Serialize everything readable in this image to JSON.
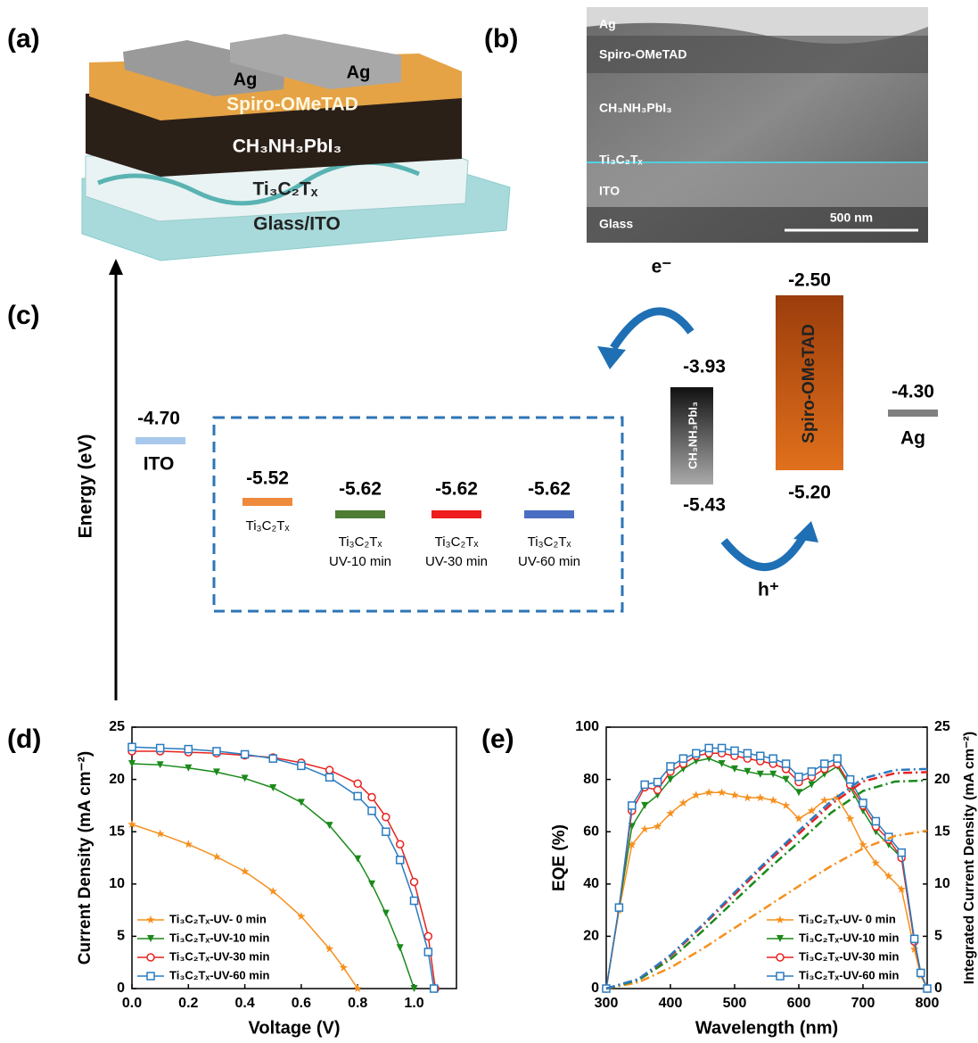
{
  "panels": {
    "a": {
      "label": "(a)",
      "layers": {
        "ag_left": "Ag",
        "ag_right": "Ag",
        "spiro": "Spiro-OMeTAD",
        "perovskite": "CH₃NH₃PbI₃",
        "mxene": "Ti₃C₂Tₓ",
        "substrate": "Glass/ITO"
      }
    },
    "b": {
      "label": "(b)",
      "layers": [
        "Ag",
        "Spiro-OMeTAD",
        "CH₃NH₃PbI₃",
        "Ti₃C₂Tₓ",
        "ITO",
        "Glass"
      ],
      "scale_bar": "500 nm"
    },
    "c": {
      "label": "(c)",
      "axis_label": "Energy (eV)",
      "ito": {
        "level": "-4.70",
        "name": "ITO"
      },
      "mxene_levels": [
        {
          "level": "-5.52",
          "name": "Ti₃C₂Tₓ",
          "color": "#ee8a3c"
        },
        {
          "level": "-5.62",
          "name": "Ti₃C₂Tₓ",
          "treatment": "UV-10 min",
          "color": "#4e7c32"
        },
        {
          "level": "-5.62",
          "name": "Ti₃C₂Tₓ",
          "treatment": "UV-30 min",
          "color": "#ee1c1c"
        },
        {
          "level": "-5.62",
          "name": "Ti₃C₂Tₓ",
          "treatment": "UV-60 min",
          "color": "#4a6ec2"
        }
      ],
      "perovskite": {
        "lumo": "-3.93",
        "homo": "-5.43",
        "name": "CH₃NH₃PbI₃"
      },
      "spiro": {
        "lumo": "-2.50",
        "homo": "-5.20",
        "name": "Spiro-OMeTAD"
      },
      "ag": {
        "level": "-4.30",
        "name": "Ag"
      },
      "electron": "e⁻",
      "hole": "h⁺"
    }
  },
  "chart_data": [
    {
      "panel": "(d)",
      "type": "line",
      "xlabel": "Voltage (V)",
      "ylabel": "Current Density (mA cm⁻²)",
      "xlim": [
        0,
        1.15
      ],
      "ylim": [
        0,
        25
      ],
      "xticks": [
        {
          "value": 0,
          "label": "0.0"
        },
        0.2,
        0.4,
        0.6,
        0.8,
        {
          "value": 1,
          "label": "1.0"
        }
      ],
      "yticks": [
        0,
        5,
        10,
        15,
        20,
        25
      ],
      "legend": "lower left",
      "series": [
        {
          "name": "Ti₃C₂Tₓ-UV- 0 min",
          "color": "#f5901e",
          "marker": "star",
          "x": [
            0,
            0.1,
            0.2,
            0.3,
            0.4,
            0.5,
            0.6,
            0.7,
            0.75,
            0.8
          ],
          "values": [
            15.7,
            14.8,
            13.8,
            12.6,
            11.2,
            9.3,
            6.9,
            3.8,
            2.0,
            0
          ]
        },
        {
          "name": "Ti₃C₂Tₓ-UV-10 min",
          "color": "#1a8a1a",
          "marker": "triangle",
          "x": [
            0,
            0.1,
            0.2,
            0.3,
            0.4,
            0.5,
            0.6,
            0.7,
            0.8,
            0.85,
            0.9,
            0.95,
            1.0
          ],
          "values": [
            21.5,
            21.4,
            21.1,
            20.7,
            20.1,
            19.2,
            17.8,
            15.6,
            12.4,
            10.0,
            7.2,
            3.9,
            0
          ]
        },
        {
          "name": "Ti₃C₂Tₓ-UV-30 min",
          "color": "#e8221f",
          "marker": "circle",
          "x": [
            0,
            0.1,
            0.2,
            0.3,
            0.4,
            0.5,
            0.6,
            0.7,
            0.8,
            0.85,
            0.9,
            0.95,
            1.0,
            1.05,
            1.075
          ],
          "values": [
            22.7,
            22.7,
            22.6,
            22.5,
            22.3,
            22.1,
            21.6,
            20.9,
            19.6,
            18.3,
            16.4,
            13.8,
            10.2,
            5.0,
            0
          ]
        },
        {
          "name": "Ti₃C₂Tₓ-UV-60 min",
          "color": "#2a7bc0",
          "marker": "square",
          "x": [
            0,
            0.1,
            0.2,
            0.3,
            0.4,
            0.5,
            0.6,
            0.7,
            0.8,
            0.85,
            0.9,
            0.95,
            1.0,
            1.05,
            1.07
          ],
          "values": [
            23.1,
            23.0,
            22.9,
            22.7,
            22.4,
            22.0,
            21.3,
            20.2,
            18.4,
            17.0,
            15.0,
            12.3,
            8.4,
            3.5,
            0
          ]
        }
      ]
    },
    {
      "panel": "(e)",
      "type": "line",
      "xlabel": "Wavelength (nm)",
      "ylabel": "EQE (%)",
      "y2label": "Integrated Current Density (mA cm⁻²)",
      "xlim": [
        300,
        800
      ],
      "ylim": [
        0,
        100
      ],
      "y2lim": [
        0,
        25
      ],
      "xticks": [
        300,
        400,
        500,
        600,
        700,
        800
      ],
      "yticks": [
        0,
        20,
        40,
        60,
        80,
        100
      ],
      "y2ticks": [
        0,
        5,
        10,
        15,
        20,
        25
      ],
      "legend": "lower right",
      "series": [
        {
          "name": "Ti₃C₂Tₓ-UV- 0 min",
          "color": "#f5901e",
          "marker": "star",
          "x": [
            300,
            320,
            340,
            360,
            380,
            400,
            420,
            440,
            460,
            480,
            500,
            520,
            540,
            560,
            580,
            600,
            620,
            640,
            660,
            680,
            700,
            720,
            740,
            760,
            780,
            790,
            800
          ],
          "values": [
            0,
            30,
            55,
            61,
            62,
            67,
            71,
            74,
            75,
            75,
            74,
            73,
            73,
            72,
            70,
            65,
            68,
            72,
            73,
            65,
            55,
            48,
            43,
            38,
            15,
            5,
            0
          ]
        },
        {
          "name": "Ti₃C₂Tₓ-UV-10 min",
          "color": "#1a8a1a",
          "marker": "triangle",
          "x": [
            300,
            320,
            340,
            360,
            380,
            400,
            420,
            440,
            460,
            480,
            500,
            520,
            540,
            560,
            580,
            600,
            620,
            640,
            660,
            680,
            700,
            720,
            740,
            760,
            780,
            790,
            800
          ],
          "values": [
            0,
            31,
            62,
            70,
            74,
            80,
            84,
            87,
            88,
            86,
            84,
            83,
            82,
            82,
            80,
            75,
            78,
            82,
            85,
            77,
            68,
            60,
            55,
            50,
            18,
            6,
            0
          ]
        },
        {
          "name": "Ti₃C₂Tₓ-UV-30 min",
          "color": "#e8221f",
          "marker": "circle",
          "x": [
            300,
            320,
            340,
            360,
            380,
            400,
            420,
            440,
            460,
            480,
            500,
            520,
            540,
            560,
            580,
            600,
            620,
            640,
            660,
            680,
            700,
            720,
            740,
            760,
            780,
            790,
            800
          ],
          "values": [
            0,
            31,
            68,
            77,
            76,
            83,
            86,
            89,
            90,
            90,
            89,
            88,
            87,
            86,
            84,
            79,
            81,
            84,
            86,
            78,
            70,
            62,
            57,
            50,
            18,
            6,
            0
          ]
        },
        {
          "name": "Ti₃C₂Tₓ-UV-60 min",
          "color": "#2a7bc0",
          "marker": "square",
          "x": [
            300,
            320,
            340,
            360,
            380,
            400,
            420,
            440,
            460,
            480,
            500,
            520,
            540,
            560,
            580,
            600,
            620,
            640,
            660,
            680,
            700,
            720,
            740,
            760,
            780,
            790,
            800
          ],
          "values": [
            0,
            31,
            70,
            78,
            79,
            85,
            88,
            90,
            92,
            92,
            91,
            90,
            89,
            88,
            86,
            81,
            83,
            86,
            88,
            80,
            71,
            64,
            58,
            52,
            19,
            6,
            0
          ]
        },
        {
          "color": "#f5901e",
          "axis": "y2",
          "linestyle": "dashdot",
          "x": [
            300,
            350,
            400,
            450,
            500,
            550,
            600,
            650,
            700,
            750,
            800
          ],
          "values": [
            0,
            0.6,
            2.0,
            3.8,
            5.8,
            7.8,
            9.8,
            11.7,
            13.4,
            14.6,
            15.1
          ]
        },
        {
          "color": "#1a8a1a",
          "axis": "y2",
          "linestyle": "dashdot",
          "x": [
            300,
            350,
            400,
            450,
            500,
            550,
            600,
            650,
            700,
            750,
            800
          ],
          "values": [
            0,
            0.8,
            2.8,
            5.5,
            8.4,
            11.3,
            14.0,
            16.8,
            18.9,
            19.8,
            19.9
          ]
        },
        {
          "color": "#e8221f",
          "axis": "y2",
          "linestyle": "dashdot",
          "x": [
            300,
            350,
            400,
            450,
            500,
            550,
            600,
            650,
            700,
            750,
            800
          ],
          "values": [
            0,
            0.9,
            3.1,
            6.0,
            9.0,
            12.0,
            14.8,
            17.6,
            19.8,
            20.6,
            20.7
          ]
        },
        {
          "color": "#2a7bc0",
          "axis": "y2",
          "linestyle": "dashdot",
          "x": [
            300,
            350,
            400,
            450,
            500,
            550,
            600,
            650,
            700,
            750,
            800
          ],
          "values": [
            0,
            0.9,
            3.2,
            6.1,
            9.2,
            12.2,
            15.1,
            17.9,
            20.1,
            20.9,
            21.0
          ]
        }
      ]
    }
  ]
}
